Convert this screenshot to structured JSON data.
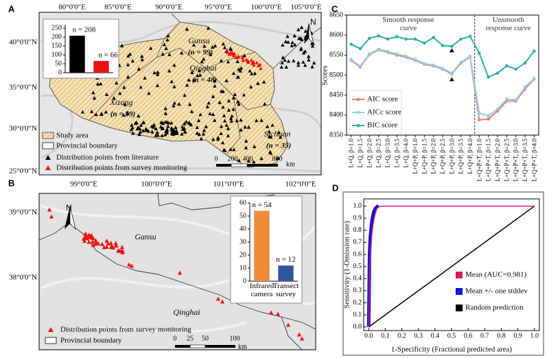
{
  "maps": {
    "A": {
      "panel": "A",
      "lon_labels": [
        "80°0'0\"E",
        "85°0'0\"E",
        "90°0'0\"E",
        "95°0'0\"E",
        "100°0'0\"E",
        "105°0'0\"E"
      ],
      "lat_labels": [
        "40°0'0\"N",
        "35°0'0\"N",
        "30°0'0\"N",
        "25°0'0\"N"
      ],
      "regions": [
        {
          "name": "Gansu",
          "count": "(n = 99)"
        },
        {
          "name": "Qinghai",
          "count": "(n = 48)"
        },
        {
          "name": "Xizang",
          "count": "(n = 59)"
        },
        {
          "name": "Sichuan",
          "count": "(n = 35)"
        }
      ],
      "legend": [
        "Study area",
        "Provincial boundary",
        "Distribution points from literature",
        "Distribution points from survey monitoring"
      ],
      "scale": [
        "0",
        "200",
        "400",
        "800",
        "km"
      ],
      "north": "N"
    },
    "B": {
      "panel": "B",
      "lon_labels": [
        "99°0'0\"E",
        "100°0'0\"E",
        "101°0'0\"E",
        "102°0'0\"E"
      ],
      "lat_labels": [
        "39°0'0\"N",
        "38°0'0\"N"
      ],
      "regions": [
        {
          "name": "Gansu"
        },
        {
          "name": "Qinghai"
        }
      ],
      "legend": [
        "Distribution points from survey monitoring",
        "Provincial boundary"
      ],
      "scale": [
        "0",
        "25",
        "50",
        "100",
        "km"
      ],
      "north": "N"
    }
  },
  "chart_data": [
    {
      "type": "bar",
      "categories": [
        null,
        null
      ],
      "values": [
        208,
        66
      ],
      "value_labels": [
        "n = 208",
        "n = 66"
      ],
      "colors": [
        "#000000",
        "#ee1111"
      ],
      "ylim": [
        0,
        270
      ],
      "yticks": [
        0,
        50,
        100,
        150,
        200,
        250
      ]
    },
    {
      "type": "bar",
      "categories": [
        "Infrared camera",
        "Transect survey"
      ],
      "values": [
        54,
        12
      ],
      "value_labels": [
        "n = 54",
        "n = 12"
      ],
      "colors": [
        "#ee8a3a",
        "#3057a0"
      ],
      "ylim": [
        0,
        60
      ],
      "yticks": [
        0,
        10,
        20,
        30,
        40,
        50,
        60
      ]
    },
    {
      "type": "line",
      "panel": "C",
      "y_label": "Scores",
      "categories": [
        "L+Q, β=1.0",
        "L+Q, β=1.5",
        "L+Q, β=2.0",
        "L+Q, β=2.5",
        "L+Q, β=3.0",
        "L+Q, β=3.5",
        "L+Q, β=4.0",
        "L+Q+P, β=1.0",
        "L+Q+P, β=1.5",
        "L+Q+P, β=2.0",
        "L+Q+P, β=2.5",
        "L+Q+P, β=3.0",
        "L+Q+P, β=3.5",
        "L+Q+P, β=4.0",
        "L+Q+P+T, β=1.0",
        "L+Q+P+T, β=1.5",
        "L+Q+P+T, β=2.0",
        "L+Q+P+T, β=2.5",
        "L+Q+P+T, β=3.0",
        "L+Q+P+T, β=3.5",
        "L+Q+P+T, β=4.0"
      ],
      "series": [
        {
          "name": "AIC score",
          "color": "#f08070",
          "values": [
            8537,
            8520,
            8551,
            8563,
            8557,
            8550,
            8545,
            8537,
            8527,
            8523,
            8515,
            8503,
            8530,
            8545,
            8388,
            8390,
            8410,
            8435,
            8435,
            8465,
            8490
          ]
        },
        {
          "name": "AICc score",
          "color": "#8fd0ee",
          "values": [
            8539,
            8522,
            8553,
            8565,
            8559,
            8553,
            8547,
            8539,
            8529,
            8525,
            8517,
            8505,
            8532,
            8547,
            8405,
            8398,
            8415,
            8440,
            8438,
            8470,
            8492
          ]
        },
        {
          "name": "BIC score",
          "color": "#30b0a0",
          "values": [
            8577,
            8566,
            8592,
            8598,
            8590,
            8596,
            8590,
            8590,
            8580,
            8594,
            8574,
            8572,
            8590,
            8597,
            8555,
            8495,
            8505,
            8523,
            8515,
            8530,
            8560
          ]
        }
      ],
      "annotations": [
        "Smooth response curve",
        "Unsmooth response curve"
      ],
      "ylim": [
        8350,
        8650
      ],
      "yticks": [
        8350,
        8400,
        8450,
        8500,
        8550,
        8600,
        8650
      ]
    },
    {
      "type": "roc",
      "panel": "D",
      "x_label": "1-Specificity (Fractional predicted area)",
      "y_label": "Sensitivity (1-Omission rate)",
      "series": [
        {
          "name": "Mean (AUC=0.981)",
          "color": "#d0205a",
          "x": [
            0,
            0.005,
            0.01,
            0.02,
            0.03,
            0.04,
            0.05,
            0.06,
            0.07,
            1.0
          ],
          "values": [
            0,
            0.45,
            0.62,
            0.78,
            0.88,
            0.94,
            0.98,
            0.995,
            1,
            1
          ]
        },
        {
          "name": "Mean +/- one stddev",
          "color": "#1010e0",
          "x": [
            0,
            0.005,
            0.01,
            0.02,
            0.03,
            0.04,
            0.05,
            0.06
          ],
          "values": [
            0,
            0.6,
            0.75,
            0.88,
            0.95,
            0.98,
            0.995,
            1
          ]
        },
        {
          "name": "Random prediction",
          "color": "#000000",
          "x": [
            0,
            1
          ],
          "values": [
            0,
            1
          ]
        }
      ],
      "xlim": [
        -0.03,
        1.03
      ],
      "ylim": [
        -0.03,
        1.06
      ],
      "xticks": [
        {
          "value": 0,
          "label": "0.0"
        },
        0.1,
        0.2,
        0.3,
        0.4,
        0.5,
        0.6,
        0.7,
        0.8,
        0.9,
        {
          "value": 1,
          "label": "1.0"
        }
      ],
      "yticks": [
        {
          "value": 0,
          "label": "0.0"
        },
        0.1,
        0.2,
        0.3,
        0.4,
        0.5,
        0.6,
        0.7,
        0.8,
        0.9,
        {
          "value": 1,
          "label": "1.0"
        }
      ]
    }
  ]
}
